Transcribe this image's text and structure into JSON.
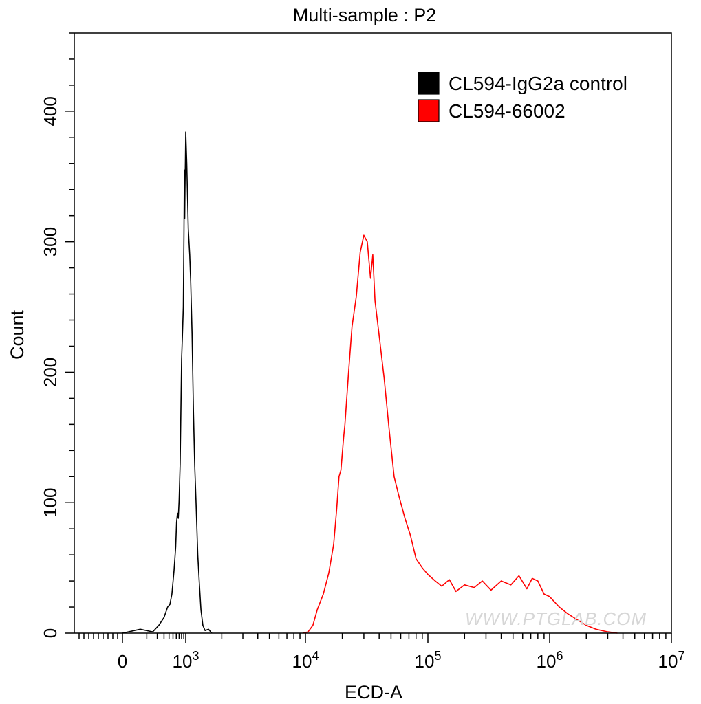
{
  "chart_data": {
    "type": "line",
    "title": "Multi-sample : P2",
    "xlabel": "ECD-A",
    "ylabel": "Count",
    "x_scale": "biexponential",
    "xlim": [
      -500,
      10000000
    ],
    "ylim": [
      0,
      460
    ],
    "x_tick_labels": [
      {
        "value": 0,
        "base": "0",
        "exp": ""
      },
      {
        "value": 1000,
        "base": "10",
        "exp": "3"
      },
      {
        "value": 10000,
        "base": "10",
        "exp": "4"
      },
      {
        "value": 100000,
        "base": "10",
        "exp": "5"
      },
      {
        "value": 1000000,
        "base": "10",
        "exp": "6"
      },
      {
        "value": 10000000,
        "base": "10",
        "exp": "7"
      }
    ],
    "y_ticks": [
      0,
      100,
      200,
      300,
      400
    ],
    "legend_position": "top-right",
    "grid": false,
    "watermark": "WWW.PTGLAB.COM",
    "series": [
      {
        "name": "CL594-IgG2a control",
        "color": "#000000",
        "points": [
          [
            0,
            0
          ],
          [
            60,
            3
          ],
          [
            150,
            1
          ],
          [
            220,
            6
          ],
          [
            300,
            12
          ],
          [
            370,
            20
          ],
          [
            420,
            22
          ],
          [
            470,
            30
          ],
          [
            530,
            48
          ],
          [
            580,
            66
          ],
          [
            610,
            85
          ],
          [
            640,
            92
          ],
          [
            670,
            88
          ],
          [
            700,
            102
          ],
          [
            740,
            130
          ],
          [
            770,
            168
          ],
          [
            800,
            210
          ],
          [
            840,
            230
          ],
          [
            880,
            250
          ],
          [
            910,
            305
          ],
          [
            930,
            355
          ],
          [
            945,
            318
          ],
          [
            960,
            340
          ],
          [
            980,
            362
          ],
          [
            1000,
            384
          ],
          [
            1020,
            360
          ],
          [
            1050,
            310
          ],
          [
            1080,
            290
          ],
          [
            1100,
            270
          ],
          [
            1130,
            230
          ],
          [
            1160,
            170
          ],
          [
            1190,
            128
          ],
          [
            1220,
            100
          ],
          [
            1260,
            60
          ],
          [
            1300,
            38
          ],
          [
            1340,
            18
          ],
          [
            1390,
            6
          ],
          [
            1450,
            2
          ],
          [
            1550,
            3
          ],
          [
            1650,
            0
          ]
        ]
      },
      {
        "name": "CL594-66002",
        "color": "#ff0000",
        "points": [
          [
            9500,
            0
          ],
          [
            10500,
            1
          ],
          [
            11500,
            6
          ],
          [
            12500,
            18
          ],
          [
            14000,
            30
          ],
          [
            15500,
            46
          ],
          [
            17000,
            68
          ],
          [
            18000,
            95
          ],
          [
            18800,
            120
          ],
          [
            19500,
            125
          ],
          [
            20500,
            150
          ],
          [
            21000,
            160
          ],
          [
            22500,
            200
          ],
          [
            24000,
            235
          ],
          [
            26000,
            258
          ],
          [
            28000,
            292
          ],
          [
            30000,
            305
          ],
          [
            32000,
            300
          ],
          [
            34000,
            272
          ],
          [
            35500,
            290
          ],
          [
            37000,
            255
          ],
          [
            40000,
            228
          ],
          [
            44000,
            195
          ],
          [
            48000,
            158
          ],
          [
            53000,
            120
          ],
          [
            58000,
            105
          ],
          [
            65000,
            88
          ],
          [
            72000,
            75
          ],
          [
            80000,
            57
          ],
          [
            90000,
            50
          ],
          [
            100000,
            45
          ],
          [
            115000,
            40
          ],
          [
            130000,
            36
          ],
          [
            150000,
            41
          ],
          [
            170000,
            32
          ],
          [
            200000,
            37
          ],
          [
            240000,
            35
          ],
          [
            280000,
            40
          ],
          [
            330000,
            33
          ],
          [
            400000,
            40
          ],
          [
            480000,
            37
          ],
          [
            560000,
            44
          ],
          [
            650000,
            34
          ],
          [
            720000,
            42
          ],
          [
            800000,
            40
          ],
          [
            900000,
            30
          ],
          [
            1000000,
            28
          ],
          [
            1200000,
            20
          ],
          [
            1400000,
            15
          ],
          [
            1700000,
            10
          ],
          [
            2000000,
            6
          ],
          [
            2400000,
            3
          ],
          [
            3000000,
            1
          ],
          [
            3600000,
            0
          ]
        ]
      }
    ]
  }
}
